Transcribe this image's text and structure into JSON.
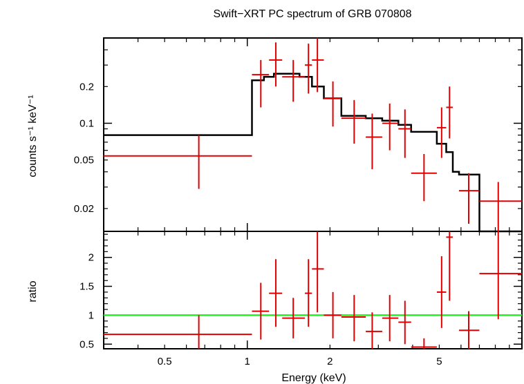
{
  "chart_data": [
    {
      "type": "line",
      "panel": "spectrum",
      "title": "Swift−XRT PC spectrum of GRB 070808",
      "ylabel": "counts s⁻¹ keV⁻¹",
      "xlabel": "",
      "xscale": "log",
      "yscale": "log",
      "xlim": [
        0.3,
        10
      ],
      "ylim": [
        0.013,
        0.5
      ],
      "yticks": [
        0.02,
        0.05,
        0.1,
        0.2
      ],
      "ytick_labels": [
        "0.02",
        "0.05",
        "0.1",
        "0.2"
      ],
      "colors": {
        "data": "#e00000",
        "model": "#000000"
      },
      "series": [
        {
          "kind": "data_points",
          "points": [
            {
              "x": 0.666,
              "xlo": 0.3,
              "xhi": 1.04,
              "y": 0.054,
              "ylo": 0.029,
              "yhi": 0.08
            },
            {
              "x": 1.12,
              "xlo": 1.04,
              "xhi": 1.2,
              "y": 0.25,
              "ylo": 0.135,
              "yhi": 0.33
            },
            {
              "x": 1.27,
              "xlo": 1.2,
              "xhi": 1.34,
              "y": 0.33,
              "ylo": 0.2,
              "yhi": 0.46
            },
            {
              "x": 1.47,
              "xlo": 1.34,
              "xhi": 1.62,
              "y": 0.24,
              "ylo": 0.15,
              "yhi": 0.33
            },
            {
              "x": 1.67,
              "xlo": 1.62,
              "xhi": 1.72,
              "y": 0.3,
              "ylo": 0.175,
              "yhi": 0.45
            },
            {
              "x": 1.8,
              "xlo": 1.72,
              "xhi": 1.9,
              "y": 0.33,
              "ylo": 0.18,
              "yhi": 0.5
            },
            {
              "x": 2.05,
              "xlo": 1.9,
              "xhi": 2.2,
              "y": 0.16,
              "ylo": 0.094,
              "yhi": 0.22
            },
            {
              "x": 2.45,
              "xlo": 2.2,
              "xhi": 2.7,
              "y": 0.11,
              "ylo": 0.068,
              "yhi": 0.155
            },
            {
              "x": 2.85,
              "xlo": 2.7,
              "xhi": 3.1,
              "y": 0.077,
              "ylo": 0.042,
              "yhi": 0.12
            },
            {
              "x": 3.3,
              "xlo": 3.1,
              "xhi": 3.55,
              "y": 0.1,
              "ylo": 0.06,
              "yhi": 0.145
            },
            {
              "x": 3.75,
              "xlo": 3.55,
              "xhi": 3.95,
              "y": 0.09,
              "ylo": 0.052,
              "yhi": 0.13
            },
            {
              "x": 4.4,
              "xlo": 3.95,
              "xhi": 4.9,
              "y": 0.039,
              "ylo": 0.023,
              "yhi": 0.056
            },
            {
              "x": 5.1,
              "xlo": 4.9,
              "xhi": 5.3,
              "y": 0.092,
              "ylo": 0.052,
              "yhi": 0.135
            },
            {
              "x": 5.45,
              "xlo": 5.3,
              "xhi": 5.6,
              "y": 0.135,
              "ylo": 0.075,
              "yhi": 0.2
            },
            {
              "x": 6.4,
              "xlo": 5.9,
              "xhi": 7.0,
              "y": 0.028,
              "ylo": 0.015,
              "yhi": 0.039
            },
            {
              "x": 8.2,
              "xlo": 7.0,
              "xhi": 10.0,
              "y": 0.023,
              "ylo": 0.013,
              "yhi": 0.033
            }
          ]
        },
        {
          "kind": "model_step",
          "bins": [
            {
              "xlo": 0.3,
              "xhi": 1.04,
              "y": 0.08
            },
            {
              "xlo": 1.04,
              "xhi": 1.15,
              "y": 0.225
            },
            {
              "xlo": 1.15,
              "xhi": 1.25,
              "y": 0.24
            },
            {
              "xlo": 1.25,
              "xhi": 1.55,
              "y": 0.255
            },
            {
              "xlo": 1.55,
              "xhi": 1.72,
              "y": 0.24
            },
            {
              "xlo": 1.72,
              "xhi": 1.9,
              "y": 0.2
            },
            {
              "xlo": 1.9,
              "xhi": 2.2,
              "y": 0.16
            },
            {
              "xlo": 2.2,
              "xhi": 2.7,
              "y": 0.115
            },
            {
              "xlo": 2.7,
              "xhi": 3.1,
              "y": 0.11
            },
            {
              "xlo": 3.1,
              "xhi": 3.55,
              "y": 0.105
            },
            {
              "xlo": 3.55,
              "xhi": 3.95,
              "y": 0.097
            },
            {
              "xlo": 3.95,
              "xhi": 4.9,
              "y": 0.085
            },
            {
              "xlo": 4.9,
              "xhi": 5.3,
              "y": 0.068
            },
            {
              "xlo": 5.3,
              "xhi": 5.6,
              "y": 0.058
            },
            {
              "xlo": 5.6,
              "xhi": 5.9,
              "y": 0.04
            },
            {
              "xlo": 5.9,
              "xhi": 7.0,
              "y": 0.038
            },
            {
              "xlo": 7.0,
              "xhi": 10.0,
              "y": 0.013
            }
          ]
        }
      ]
    },
    {
      "type": "scatter",
      "panel": "ratio",
      "ylabel": "ratio",
      "xlabel": "Energy (keV)",
      "xscale": "log",
      "yscale": "linear",
      "xlim": [
        0.3,
        10
      ],
      "ylim": [
        0.42,
        2.45
      ],
      "xticks": [
        0.5,
        1,
        2,
        5
      ],
      "xtick_labels": [
        "0.5",
        "1",
        "2",
        "5"
      ],
      "yticks": [
        0.5,
        1,
        1.5,
        2
      ],
      "ytick_labels": [
        "0.5",
        "1",
        "1.5",
        "2"
      ],
      "reference_line": 1,
      "colors": {
        "data": "#e00000",
        "reference": "#22ee22"
      },
      "series": [
        {
          "kind": "data_points",
          "points": [
            {
              "x": 0.666,
              "xlo": 0.3,
              "xhi": 1.04,
              "y": 0.67,
              "ylo": 0.42,
              "yhi": 1.0
            },
            {
              "x": 1.12,
              "xlo": 1.04,
              "xhi": 1.2,
              "y": 1.07,
              "ylo": 0.58,
              "yhi": 1.56
            },
            {
              "x": 1.27,
              "xlo": 1.2,
              "xhi": 1.34,
              "y": 1.38,
              "ylo": 0.8,
              "yhi": 1.97
            },
            {
              "x": 1.47,
              "xlo": 1.34,
              "xhi": 1.62,
              "y": 0.95,
              "ylo": 0.6,
              "yhi": 1.3
            },
            {
              "x": 1.67,
              "xlo": 1.62,
              "xhi": 1.72,
              "y": 1.38,
              "ylo": 0.8,
              "yhi": 1.97
            },
            {
              "x": 1.8,
              "xlo": 1.72,
              "xhi": 1.9,
              "y": 1.8,
              "ylo": 1.05,
              "yhi": 2.45
            },
            {
              "x": 2.05,
              "xlo": 1.9,
              "xhi": 2.2,
              "y": 1.0,
              "ylo": 0.6,
              "yhi": 1.4
            },
            {
              "x": 2.45,
              "xlo": 2.2,
              "xhi": 2.7,
              "y": 0.97,
              "ylo": 0.55,
              "yhi": 1.35
            },
            {
              "x": 2.85,
              "xlo": 2.7,
              "xhi": 3.1,
              "y": 0.72,
              "ylo": 0.38,
              "yhi": 1.05
            },
            {
              "x": 3.3,
              "xlo": 3.1,
              "xhi": 3.55,
              "y": 0.95,
              "ylo": 0.55,
              "yhi": 1.35
            },
            {
              "x": 3.75,
              "xlo": 3.55,
              "xhi": 3.95,
              "y": 0.88,
              "ylo": 0.5,
              "yhi": 1.25
            },
            {
              "x": 4.4,
              "xlo": 3.95,
              "xhi": 4.9,
              "y": 0.45,
              "ylo": 0.3,
              "yhi": 0.6
            },
            {
              "x": 5.1,
              "xlo": 4.9,
              "xhi": 5.3,
              "y": 1.4,
              "ylo": 0.78,
              "yhi": 2.02
            },
            {
              "x": 5.45,
              "xlo": 5.3,
              "xhi": 5.6,
              "y": 2.35,
              "ylo": 1.25,
              "yhi": 2.45
            },
            {
              "x": 6.4,
              "xlo": 5.9,
              "xhi": 7.0,
              "y": 0.74,
              "ylo": 0.4,
              "yhi": 1.07
            },
            {
              "x": 8.2,
              "xlo": 7.0,
              "xhi": 10.0,
              "y": 1.72,
              "ylo": 0.93,
              "yhi": 2.45
            }
          ]
        }
      ]
    }
  ]
}
